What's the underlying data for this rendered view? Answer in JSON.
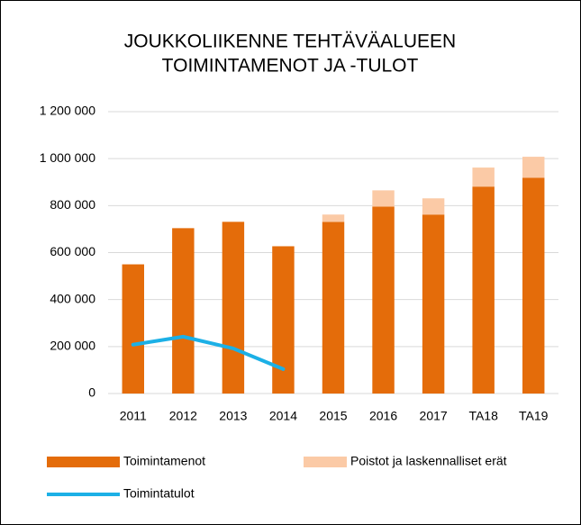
{
  "chart_data": {
    "type": "bar",
    "stacked": true,
    "title": [
      "JOUKKOLIIKENNE TEHTÄVÄALUEEN",
      "TOIMINTAMENOT  JA -TULOT"
    ],
    "categories": [
      "2011",
      "2012",
      "2013",
      "2014",
      "2015",
      "2016",
      "2017",
      "TA18",
      "TA19"
    ],
    "series": [
      {
        "name": "Toimintamenot",
        "type": "bar",
        "color": "#e46c0a",
        "values": [
          550000,
          704000,
          731000,
          627000,
          731000,
          796000,
          762000,
          881000,
          919000
        ]
      },
      {
        "name": "Poistot ja laskennalliset erät",
        "type": "bar",
        "color": "#fbcaa6",
        "values": [
          0,
          0,
          0,
          0,
          31000,
          69000,
          69000,
          81000,
          89000
        ]
      },
      {
        "name": "Toimintatulot",
        "type": "line",
        "color": "#1cb0e6",
        "values": [
          208000,
          242000,
          192000,
          104000,
          null,
          null,
          null,
          null,
          null
        ]
      }
    ],
    "ylim": [
      0,
      1200000
    ],
    "yticks": [
      0,
      {
        "value": 200000,
        "label": "200 000"
      },
      {
        "value": 400000,
        "label": "400 000"
      },
      {
        "value": 600000,
        "label": "600 000"
      },
      {
        "value": 800000,
        "label": "800 000"
      },
      {
        "value": 1000000,
        "label": "1 000 000"
      },
      {
        "value": 1200000,
        "label": "1 200 000"
      }
    ],
    "grid": true,
    "legend": "bottom"
  }
}
